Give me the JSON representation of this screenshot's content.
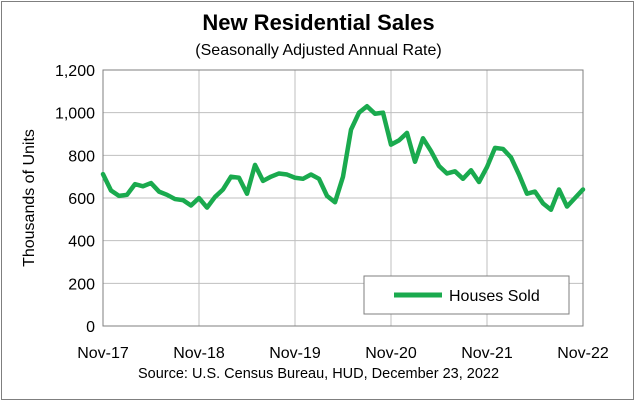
{
  "chart_data": {
    "type": "line",
    "title": "New Residential Sales",
    "subtitle": "(Seasonally Adjusted Annual Rate)",
    "ylabel": "Thousands of Units",
    "xlabel": "",
    "source": "Source:  U.S. Census Bureau, HUD, December 23, 2022",
    "ylim": [
      0,
      1200
    ],
    "yticks": [
      0,
      200,
      400,
      600,
      800,
      1000,
      1200
    ],
    "ytick_labels": [
      "0",
      "200",
      "400",
      "600",
      "800",
      "1,000",
      "1,200"
    ],
    "xtick_labels": [
      "Nov-17",
      "Nov-18",
      "Nov-19",
      "Nov-20",
      "Nov-21",
      "Nov-22"
    ],
    "xtick_positions": [
      0,
      12,
      24,
      36,
      48,
      60
    ],
    "grid": true,
    "legend_position": "bottom-right",
    "series": [
      {
        "name": "Houses Sold",
        "color": "#1aaa4e",
        "x": [
          "Nov-17",
          "Dec-17",
          "Jan-18",
          "Feb-18",
          "Mar-18",
          "Apr-18",
          "May-18",
          "Jun-18",
          "Jul-18",
          "Aug-18",
          "Sep-18",
          "Oct-18",
          "Nov-18",
          "Dec-18",
          "Jan-19",
          "Feb-19",
          "Mar-19",
          "Apr-19",
          "May-19",
          "Jun-19",
          "Jul-19",
          "Aug-19",
          "Sep-19",
          "Oct-19",
          "Nov-19",
          "Dec-19",
          "Jan-20",
          "Feb-20",
          "Mar-20",
          "Apr-20",
          "May-20",
          "Jun-20",
          "Jul-20",
          "Aug-20",
          "Sep-20",
          "Oct-20",
          "Nov-20",
          "Dec-20",
          "Jan-21",
          "Feb-21",
          "Mar-21",
          "Apr-21",
          "May-21",
          "Jun-21",
          "Jul-21",
          "Aug-21",
          "Sep-21",
          "Oct-21",
          "Nov-21",
          "Dec-21",
          "Jan-22",
          "Feb-22",
          "Mar-22",
          "Apr-22",
          "May-22",
          "Jun-22",
          "Jul-22",
          "Aug-22",
          "Sep-22",
          "Oct-22",
          "Nov-22"
        ],
        "values": [
          712,
          635,
          610,
          615,
          665,
          655,
          670,
          630,
          615,
          595,
          590,
          565,
          600,
          555,
          605,
          640,
          700,
          695,
          620,
          755,
          680,
          700,
          715,
          710,
          695,
          690,
          710,
          690,
          610,
          580,
          700,
          920,
          1000,
          1030,
          995,
          1000,
          850,
          870,
          905,
          770,
          880,
          820,
          750,
          715,
          725,
          690,
          730,
          675,
          745,
          835,
          830,
          790,
          710,
          620,
          630,
          575,
          545,
          640,
          560,
          600,
          640
        ]
      }
    ]
  }
}
